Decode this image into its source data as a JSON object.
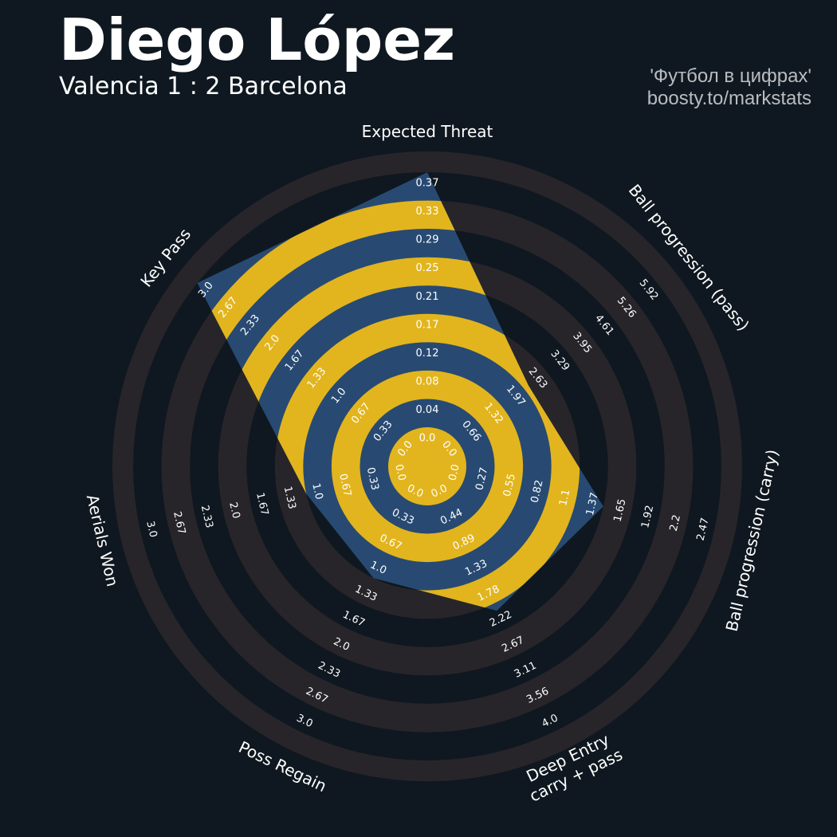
{
  "header": {
    "title": "Diego López",
    "subtitle": "Valencia 1 : 2 Barcelona",
    "credit_line1": "'Футбол в цифрах'",
    "credit_line2": "boosty.to/markstats"
  },
  "colors": {
    "background": "#0f1820",
    "ring_band": "#28252a",
    "player_area": "#284a72",
    "player_band": "#e2b51e",
    "text": "#ffffff",
    "credit": "#b9bcc0"
  },
  "chart_data": {
    "type": "radar",
    "axes": [
      {
        "label": "Expected Threat",
        "ticks": [
          "0.0",
          "0.04",
          "0.08",
          "0.12",
          "0.17",
          "0.21",
          "0.25",
          "0.29",
          "0.33",
          "0.37"
        ],
        "value": 0.37,
        "min": 0.0,
        "max": 0.37
      },
      {
        "label": "Ball progression (pass)",
        "ticks": [
          "0.0",
          "0.66",
          "1.32",
          "1.97",
          "2.63",
          "3.29",
          "3.95",
          "4.61",
          "5.26",
          "5.92"
        ],
        "value": 2.1,
        "min": 0.0,
        "max": 5.92
      },
      {
        "label": "Ball progression (carry)",
        "ticks": [
          "0.0",
          "0.27",
          "0.55",
          "0.82",
          "1.1",
          "1.37",
          "1.65",
          "1.92",
          "2.2",
          "2.47"
        ],
        "value": 1.37,
        "min": 0.0,
        "max": 2.47
      },
      {
        "label": "Deep Entry\ncarry + pass",
        "ticks": [
          "0.0",
          "0.44",
          "0.89",
          "1.33",
          "1.78",
          "2.22",
          "2.67",
          "3.11",
          "3.56",
          "4.0"
        ],
        "value": 1.9,
        "min": 0.0,
        "max": 4.0
      },
      {
        "label": "Poss Regain",
        "ticks": [
          "0.0",
          "0.33",
          "0.67",
          "1.0",
          "1.33",
          "1.67",
          "2.0",
          "2.33",
          "2.67",
          "3.0"
        ],
        "value": 1.0,
        "min": 0.0,
        "max": 3.0
      },
      {
        "label": "Aerials Won",
        "ticks": [
          "0.0",
          "0.33",
          "0.67",
          "1.0",
          "1.33",
          "1.67",
          "2.0",
          "2.33",
          "2.67",
          "3.0"
        ],
        "value": 1.0,
        "min": 0.0,
        "max": 3.0
      },
      {
        "label": "Key Pass",
        "ticks": [
          "0.0",
          "0.33",
          "0.67",
          "1.0",
          "1.33",
          "1.67",
          "2.0",
          "2.33",
          "2.67",
          "3.0"
        ],
        "value": 3.0,
        "min": 0.0,
        "max": 3.0
      }
    ]
  }
}
